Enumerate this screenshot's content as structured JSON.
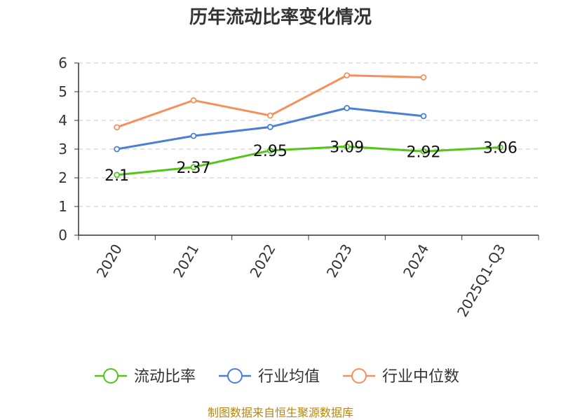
{
  "chart_data": {
    "type": "line",
    "title": "历年流动比率变化情况",
    "categories": [
      "2020",
      "2021",
      "2022",
      "2023",
      "2024",
      "2025Q1-Q3"
    ],
    "ylim": [
      0,
      6
    ],
    "yticks": [
      0,
      1,
      2,
      3,
      4,
      5,
      6
    ],
    "grid": true,
    "legend": "bottom",
    "series": [
      {
        "name": "流动比率",
        "color": "#52c41a",
        "values": [
          2.1,
          2.37,
          2.95,
          3.09,
          2.92,
          3.06
        ],
        "labels": [
          "2.1",
          "2.37",
          "2.95",
          "3.09",
          "2.92",
          "3.06"
        ]
      },
      {
        "name": "行业均值",
        "color": "#4a7fd8",
        "values": [
          3.0,
          3.46,
          3.77,
          4.43,
          4.15,
          null
        ]
      },
      {
        "name": "行业中位数",
        "color": "#f5905a",
        "values": [
          3.76,
          4.7,
          4.17,
          5.57,
          5.5,
          null
        ]
      }
    ]
  },
  "source": "制图数据来自恒生聚源数据库"
}
